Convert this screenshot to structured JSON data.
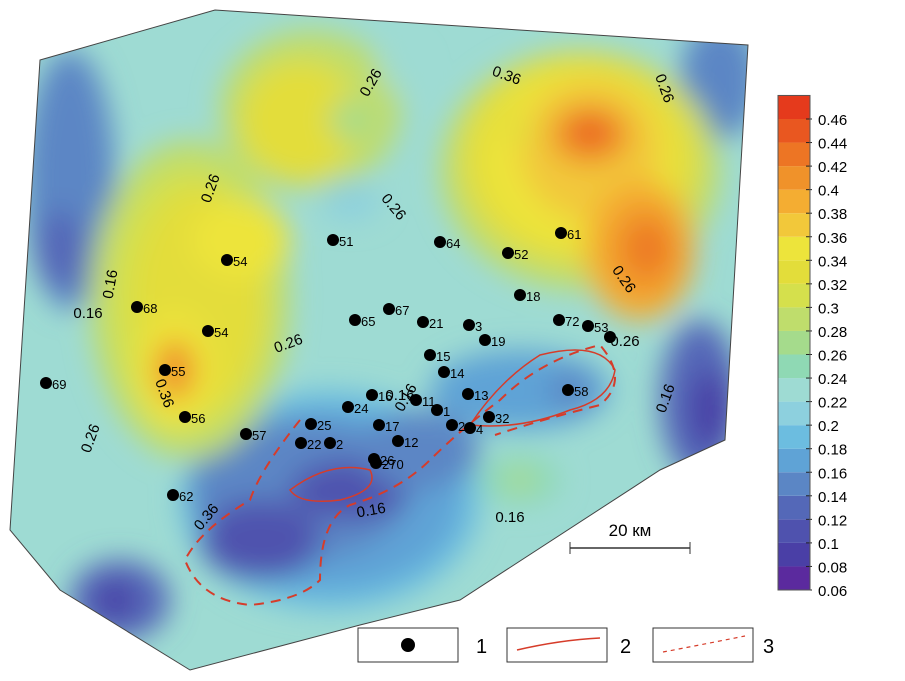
{
  "colorbar": {
    "ticks": [
      0.06,
      0.08,
      0.1,
      0.12,
      0.14,
      0.16,
      0.18,
      0.2,
      0.22,
      0.24,
      0.26,
      0.28,
      0.3,
      0.32,
      0.34,
      0.36,
      0.38,
      0.4,
      0.42,
      0.44,
      0.46
    ],
    "colors": [
      "#5b2a9e",
      "#4a3fa6",
      "#4f52ae",
      "#5468b8",
      "#5b86c5",
      "#5fa3d6",
      "#6cbde0",
      "#8dd0de",
      "#9edbd3",
      "#8fd9b4",
      "#a5db8c",
      "#bfdd6c",
      "#d5e04c",
      "#e3dd3a",
      "#ede43b",
      "#f2c83a",
      "#f4ad32",
      "#f0922a",
      "#ed7524",
      "#e95720",
      "#e53a1c"
    ]
  },
  "contour_labels": [
    "0.26",
    "0.36",
    "0.26",
    "0.26",
    "0.26",
    "0.16",
    "0.16",
    "0.26",
    "0.26",
    "0.26",
    "0.36",
    "0.26",
    "0.36",
    "0.16",
    "0.16",
    "0.16",
    "0.16",
    "0.16"
  ],
  "wells": [
    "51",
    "64",
    "52",
    "61",
    "54",
    "18",
    "68",
    "65",
    "67",
    "21",
    "3",
    "72",
    "53",
    "19",
    "54",
    "55",
    "15",
    "14",
    "69",
    "58",
    "16",
    "13",
    "24",
    "11",
    "1",
    "56",
    "32",
    "25",
    "17",
    "2",
    "4",
    "57",
    "22",
    "2",
    "12",
    "26",
    "270",
    "62"
  ],
  "scale_label": "20 км",
  "legend": [
    "1",
    "2",
    "3"
  ]
}
